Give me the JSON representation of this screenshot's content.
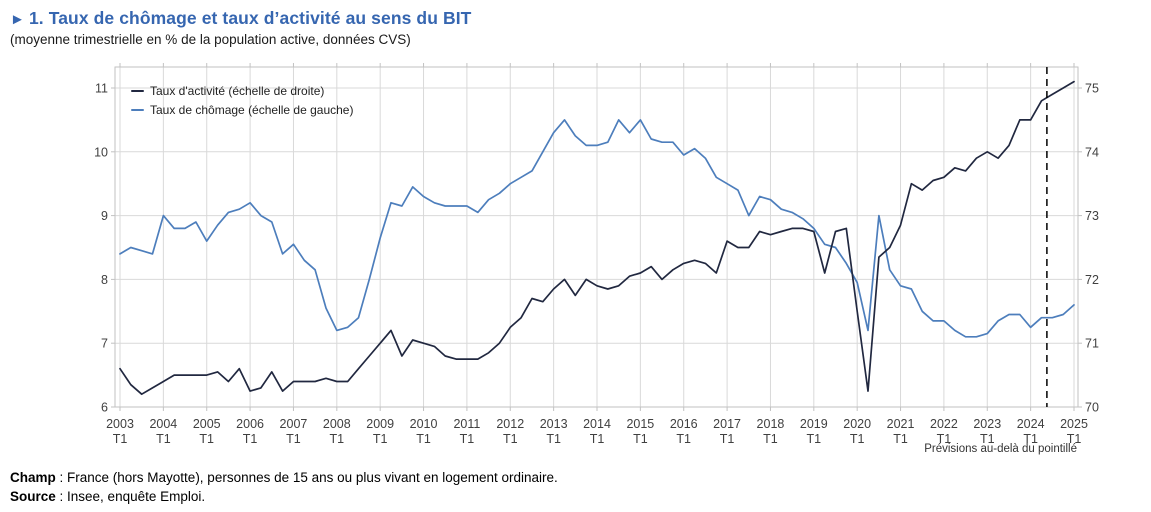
{
  "colors": {
    "accent_blue": "#3666b0",
    "activity_line": "#212840",
    "unemployment_line": "#4d7ebc",
    "grid": "#d9d9d9",
    "plot_border": "#c2c2c2",
    "tick_label": "#404040",
    "forecast_dash": "#000000"
  },
  "chart_data": {
    "type": "line",
    "title_prefix": "►",
    "title": "1. Taux de chômage et taux d’activité au sens du BIT",
    "subtitle": "(moyenne trimestrielle en % de la population active, données CVS)",
    "x_tick_years": [
      2003,
      2004,
      2005,
      2006,
      2007,
      2008,
      2009,
      2010,
      2011,
      2012,
      2013,
      2014,
      2015,
      2016,
      2017,
      2018,
      2019,
      2020,
      2021,
      2022,
      2023,
      2024,
      2025
    ],
    "quarter_tick_label": "T1",
    "left_axis": {
      "min": 6,
      "max": 11,
      "ticks": [
        6,
        7,
        8,
        9,
        10,
        11
      ]
    },
    "right_axis": {
      "min": 70,
      "max": 75,
      "ticks": [
        70,
        71,
        72,
        73,
        74,
        75
      ]
    },
    "grid": true,
    "legend_position": "top-left-inside",
    "forecast_note": "Prévisions au-delà du pointillé",
    "forecast_boundary_quarter_index": 85.5,
    "series": [
      {
        "name": "Taux d'activité (échelle de droite)",
        "axis": "right",
        "color": "#212840",
        "values": [
          70.6,
          70.35,
          70.2,
          70.3,
          70.4,
          70.5,
          70.5,
          70.5,
          70.5,
          70.55,
          70.4,
          70.6,
          70.25,
          70.3,
          70.55,
          70.25,
          70.4,
          70.4,
          70.4,
          70.45,
          70.4,
          70.4,
          70.6,
          70.8,
          71.0,
          71.2,
          70.8,
          71.05,
          71.0,
          70.95,
          70.8,
          70.75,
          70.75,
          70.75,
          70.85,
          71.0,
          71.25,
          71.4,
          71.7,
          71.65,
          71.85,
          72.0,
          71.75,
          72.0,
          71.9,
          71.85,
          71.9,
          72.05,
          72.1,
          72.2,
          72.0,
          72.15,
          72.25,
          72.3,
          72.25,
          72.1,
          72.6,
          72.5,
          72.5,
          72.75,
          72.7,
          72.75,
          72.8,
          72.8,
          72.75,
          72.1,
          72.75,
          72.8,
          71.5,
          70.25,
          72.35,
          72.5,
          72.85,
          73.5,
          73.4,
          73.55,
          73.6,
          73.75,
          73.7,
          73.9,
          74.0,
          73.9,
          74.1,
          74.5,
          74.5,
          74.8,
          74.9,
          75.0,
          75.1
        ]
      },
      {
        "name": "Taux de chômage (échelle de gauche)",
        "axis": "left",
        "color": "#4d7ebc",
        "values": [
          8.4,
          8.5,
          8.45,
          8.4,
          9.0,
          8.8,
          8.8,
          8.9,
          8.6,
          8.85,
          9.05,
          9.1,
          9.2,
          9.0,
          8.9,
          8.4,
          8.55,
          8.3,
          8.15,
          7.55,
          7.2,
          7.25,
          7.4,
          8.0,
          8.65,
          9.2,
          9.15,
          9.45,
          9.3,
          9.2,
          9.15,
          9.15,
          9.15,
          9.05,
          9.25,
          9.35,
          9.5,
          9.6,
          9.7,
          10.0,
          10.3,
          10.5,
          10.25,
          10.1,
          10.1,
          10.15,
          10.5,
          10.3,
          10.5,
          10.2,
          10.15,
          10.15,
          9.95,
          10.05,
          9.9,
          9.6,
          9.5,
          9.4,
          9.0,
          9.3,
          9.25,
          9.1,
          9.05,
          8.95,
          8.8,
          8.55,
          8.5,
          8.25,
          7.95,
          7.2,
          9.0,
          8.15,
          7.9,
          7.85,
          7.5,
          7.35,
          7.35,
          7.2,
          7.1,
          7.1,
          7.15,
          7.35,
          7.45,
          7.45,
          7.25,
          7.4,
          7.4,
          7.45,
          7.6
        ]
      }
    ]
  },
  "footer": {
    "champ_label": "Champ",
    "champ_text": " : France (hors Mayotte), personnes de 15 ans ou plus vivant en logement ordinaire.",
    "source_label": "Source",
    "source_text": " : Insee, enquête Emploi."
  }
}
